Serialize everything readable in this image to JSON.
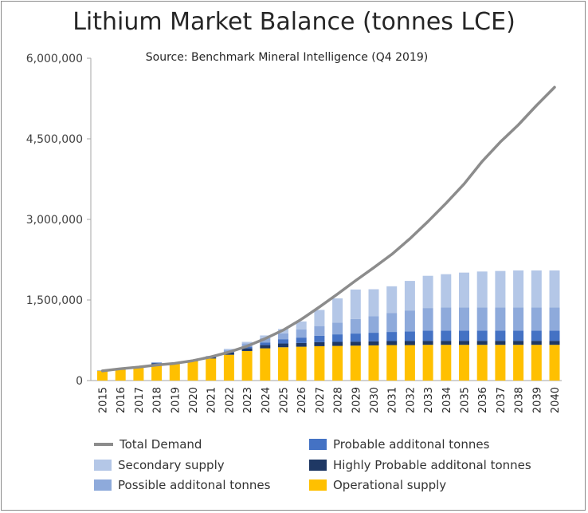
{
  "chart_data": {
    "type": "bar",
    "title": "Lithium Market Balance (tonnes LCE)",
    "subtitle": "Source: Benchmark Mineral Intelligence (Q4 2019)",
    "categories": [
      "2015",
      "2016",
      "2017",
      "2018",
      "2019",
      "2020",
      "2021",
      "2022",
      "2023",
      "2024",
      "2025",
      "2026",
      "2027",
      "2028",
      "2029",
      "2030",
      "2031",
      "2032",
      "2033",
      "2034",
      "2035",
      "2036",
      "2037",
      "2038",
      "2039",
      "2040"
    ],
    "ylim": [
      0,
      6000000
    ],
    "yticks": [
      0,
      1500000,
      3000000,
      4500000,
      6000000
    ],
    "ytick_labels": [
      "0",
      "1,500,000",
      "3,000,000",
      "4,500,000",
      "6,000,000"
    ],
    "stacked": true,
    "series": [
      {
        "name": "Operational supply",
        "color": "#ffc000",
        "values": [
          180000,
          200000,
          240000,
          300000,
          310000,
          360000,
          410000,
          480000,
          550000,
          600000,
          620000,
          630000,
          640000,
          645000,
          650000,
          655000,
          660000,
          660000,
          665000,
          665000,
          665000,
          665000,
          665000,
          665000,
          665000,
          665000
        ]
      },
      {
        "name": "Highly Probable additonal tonnes",
        "color": "#1f3864",
        "values": [
          5000,
          5000,
          10000,
          20000,
          10000,
          10000,
          20000,
          40000,
          50000,
          60000,
          70000,
          70000,
          75000,
          75000,
          75000,
          75000,
          75000,
          75000,
          75000,
          75000,
          75000,
          75000,
          75000,
          75000,
          75000,
          75000
        ]
      },
      {
        "name": "Probable additonal tonnes",
        "color": "#4472c4",
        "values": [
          0,
          0,
          0,
          15000,
          5000,
          10000,
          10000,
          20000,
          30000,
          50000,
          80000,
          100000,
          120000,
          140000,
          150000,
          160000,
          170000,
          180000,
          190000,
          190000,
          190000,
          190000,
          190000,
          190000,
          190000,
          190000
        ]
      },
      {
        "name": "Possible additonal tonnes",
        "color": "#8eaadb",
        "values": [
          0,
          0,
          0,
          0,
          0,
          0,
          10000,
          30000,
          60000,
          80000,
          110000,
          150000,
          180000,
          220000,
          270000,
          310000,
          350000,
          390000,
          420000,
          430000,
          430000,
          430000,
          430000,
          430000,
          430000,
          430000
        ]
      },
      {
        "name": "Secondary supply",
        "color": "#b4c7e7",
        "values": [
          0,
          0,
          0,
          0,
          0,
          0,
          10000,
          20000,
          30000,
          50000,
          80000,
          150000,
          300000,
          450000,
          550000,
          500000,
          500000,
          550000,
          600000,
          620000,
          650000,
          670000,
          680000,
          690000,
          690000,
          690000
        ]
      }
    ],
    "line_series": {
      "name": "Total Demand",
      "color": "#8c8c8c",
      "values": [
        180000,
        220000,
        250000,
        290000,
        320000,
        370000,
        440000,
        530000,
        640000,
        780000,
        940000,
        1140000,
        1370000,
        1610000,
        1860000,
        2100000,
        2350000,
        2640000,
        2960000,
        3300000,
        3660000,
        4080000,
        4440000,
        4760000,
        5120000,
        5460000
      ]
    },
    "legend": [
      {
        "name": "Total Demand",
        "kind": "line",
        "color": "#8c8c8c"
      },
      {
        "name": "Probable additonal tonnes",
        "kind": "box",
        "color": "#4472c4"
      },
      {
        "name": "Secondary supply",
        "kind": "box",
        "color": "#b4c7e7"
      },
      {
        "name": "Highly Probable additonal tonnes",
        "kind": "box",
        "color": "#1f3864"
      },
      {
        "name": "Possible additonal tonnes",
        "kind": "box",
        "color": "#8eaadb"
      },
      {
        "name": "Operational supply",
        "kind": "box",
        "color": "#ffc000"
      }
    ]
  }
}
